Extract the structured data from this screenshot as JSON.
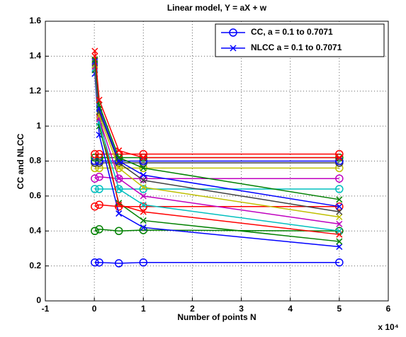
{
  "chart_data": {
    "type": "line",
    "title": "Linear model, Y = aX + w",
    "xlabel": "Number of points N",
    "ylabel": "CC and NLCC",
    "x_multiplier": "x 10⁴",
    "x": [
      0.01,
      0.1,
      0.5,
      1,
      5
    ],
    "xlim": [
      -1,
      6
    ],
    "xticks": [
      -1,
      0,
      1,
      2,
      3,
      4,
      5,
      6
    ],
    "ylim": [
      0,
      1.6
    ],
    "yticks": [
      0,
      0.2,
      0.4,
      0.6,
      0.8,
      1,
      1.2,
      1.4,
      1.6
    ],
    "grid": true,
    "legend_position": "top-right",
    "legend": [
      {
        "label": "CC, a = 0.1 to 0.7071",
        "marker": "circle",
        "color": "#0000ff"
      },
      {
        "label": "NLCC a = 0.1 to 0.7071",
        "marker": "cross",
        "color": "#0000ff"
      }
    ],
    "series": [
      {
        "marker": "circle",
        "color": "#0000ff",
        "values": [
          0.22,
          0.22,
          0.215,
          0.22,
          0.22
        ]
      },
      {
        "marker": "circle",
        "color": "#008000",
        "values": [
          0.4,
          0.41,
          0.4,
          0.405,
          0.4
        ]
      },
      {
        "marker": "circle",
        "color": "#ff0000",
        "values": [
          0.54,
          0.55,
          0.54,
          0.54,
          0.54
        ]
      },
      {
        "marker": "circle",
        "color": "#00bfbf",
        "values": [
          0.64,
          0.64,
          0.64,
          0.64,
          0.64
        ]
      },
      {
        "marker": "circle",
        "color": "#bf00bf",
        "values": [
          0.7,
          0.71,
          0.7,
          0.7,
          0.7
        ]
      },
      {
        "marker": "circle",
        "color": "#bfbf00",
        "values": [
          0.76,
          0.76,
          0.76,
          0.76,
          0.76
        ]
      },
      {
        "marker": "circle",
        "color": "#404040",
        "values": [
          0.79,
          0.79,
          0.79,
          0.79,
          0.79
        ]
      },
      {
        "marker": "circle",
        "color": "#0000ff",
        "values": [
          0.8,
          0.8,
          0.8,
          0.8,
          0.8
        ]
      },
      {
        "marker": "circle",
        "color": "#008000",
        "values": [
          0.82,
          0.82,
          0.82,
          0.82,
          0.82
        ]
      },
      {
        "marker": "circle",
        "color": "#ff0000",
        "values": [
          0.84,
          0.84,
          0.84,
          0.84,
          0.84
        ]
      },
      {
        "marker": "cross",
        "color": "#0000ff",
        "values": [
          1.3,
          0.95,
          0.5,
          0.42,
          0.31
        ]
      },
      {
        "marker": "cross",
        "color": "#008000",
        "values": [
          1.32,
          1.0,
          0.56,
          0.46,
          0.34
        ]
      },
      {
        "marker": "cross",
        "color": "#ff0000",
        "values": [
          1.4,
          1.05,
          0.55,
          0.51,
          0.38
        ]
      },
      {
        "marker": "cross",
        "color": "#00bfbf",
        "values": [
          1.33,
          1.02,
          0.64,
          0.55,
          0.4
        ]
      },
      {
        "marker": "cross",
        "color": "#bf00bf",
        "values": [
          1.34,
          1.04,
          0.7,
          0.6,
          0.44
        ]
      },
      {
        "marker": "cross",
        "color": "#bfbf00",
        "values": [
          1.35,
          1.06,
          0.76,
          0.65,
          0.48
        ]
      },
      {
        "marker": "cross",
        "color": "#404040",
        "values": [
          1.36,
          1.08,
          0.79,
          0.69,
          0.51
        ]
      },
      {
        "marker": "cross",
        "color": "#0000ff",
        "values": [
          1.37,
          1.1,
          0.8,
          0.72,
          0.54
        ]
      },
      {
        "marker": "cross",
        "color": "#008000",
        "values": [
          1.38,
          1.12,
          0.82,
          0.76,
          0.58
        ]
      },
      {
        "marker": "cross",
        "color": "#ff0000",
        "values": [
          1.43,
          1.15,
          0.86,
          0.82,
          0.82
        ]
      }
    ]
  }
}
